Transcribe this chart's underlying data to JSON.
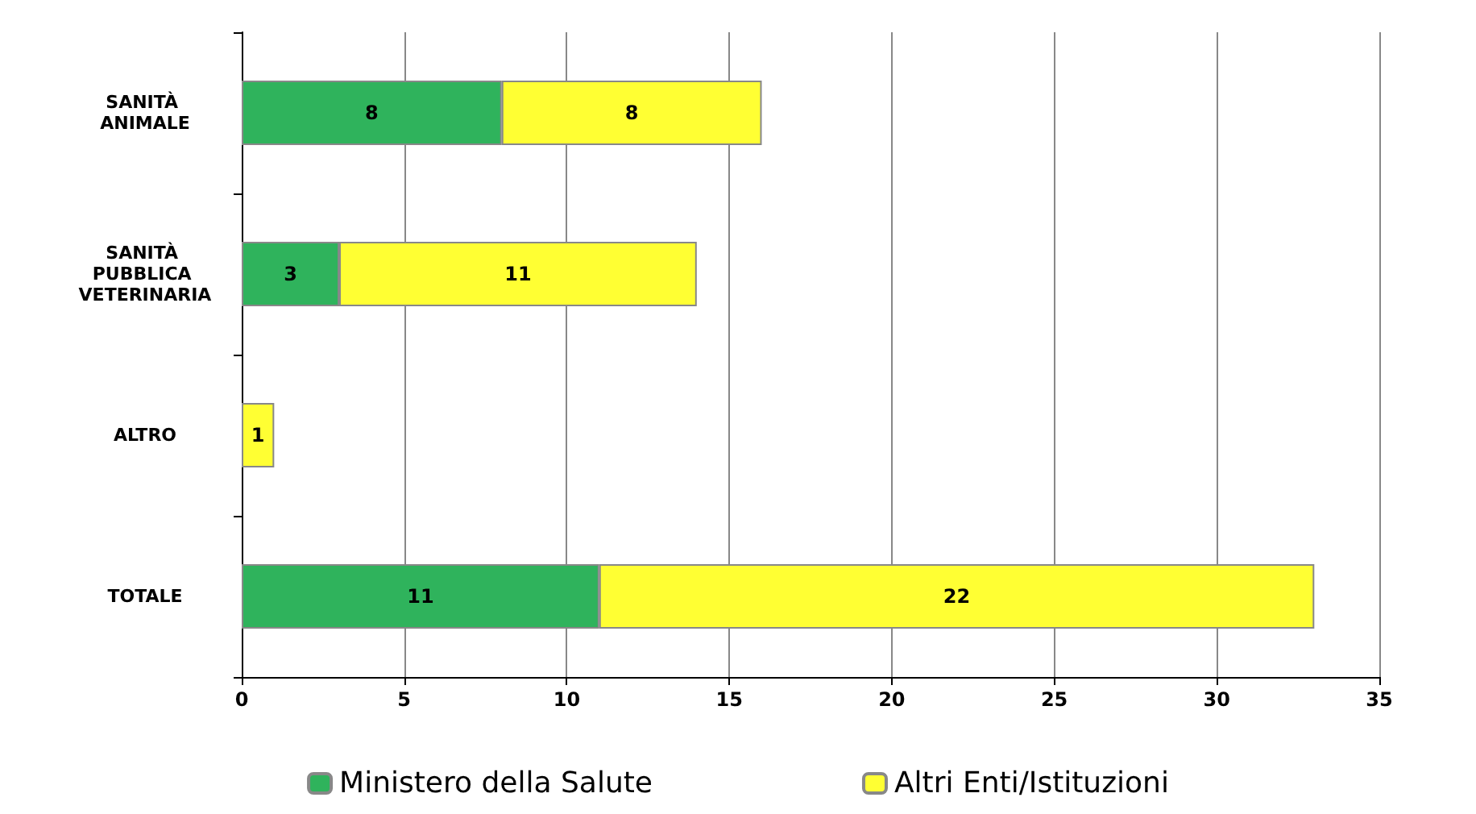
{
  "chart_data": {
    "type": "bar",
    "orientation": "horizontal",
    "stacked": true,
    "categories": [
      "SANITÀ ANIMALE",
      "SANITÀ PUBBLICA VETERINARIA",
      "ALTRO",
      "TOTALE"
    ],
    "series": [
      {
        "name": "Ministero della Salute",
        "color": "#2fb35c",
        "values": [
          8,
          3,
          null,
          11
        ]
      },
      {
        "name": "Altri Enti/Istituzioni",
        "color": "#ffff33",
        "values": [
          8,
          11,
          1,
          22
        ]
      }
    ],
    "xlim": [
      0,
      35
    ],
    "xticks": [
      0,
      5,
      10,
      15,
      20,
      25,
      30,
      35
    ],
    "grid": "x",
    "legend": "bottom",
    "data_labels": true
  }
}
